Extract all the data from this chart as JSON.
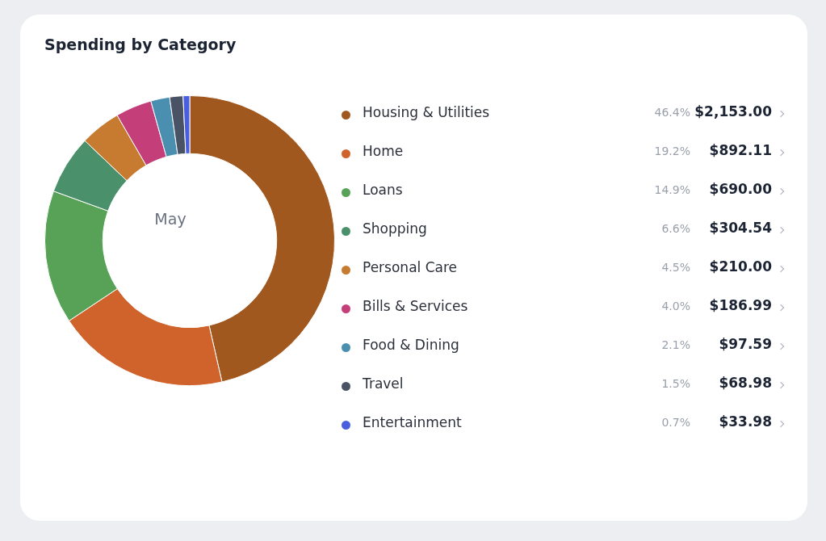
{
  "chart_data": {
    "type": "donut",
    "title": "Spending by Category",
    "categories": [
      "Housing & Utilities",
      "Home",
      "Loans",
      "Shopping",
      "Personal Care",
      "Bills & Services",
      "Food & Dining",
      "Travel",
      "Entertainment"
    ],
    "values": [
      2153.0,
      892.11,
      690.0,
      304.54,
      210.0,
      186.99,
      97.59,
      68.98,
      33.98
    ],
    "value_labels": [
      "$2,153.00",
      "$892.11",
      "$690.00",
      "$304.54",
      "$210.00",
      "$186.99",
      "$97.59",
      "$68.98",
      "$33.98"
    ],
    "colors": [
      "#a0581f",
      "#d0622c",
      "#57a257",
      "#4a906b",
      "#c67b30",
      "#c43e7a",
      "#4a8fb0",
      "#4a5266",
      "#4a5fe0"
    ],
    "annotations": [
      "May",
      "46.4%",
      "19.2%",
      "14.9%",
      "6.6%",
      "4.5%",
      "4.0%",
      "2.1%",
      "1.5%",
      "0.7%"
    ],
    "legend": "right"
  }
}
